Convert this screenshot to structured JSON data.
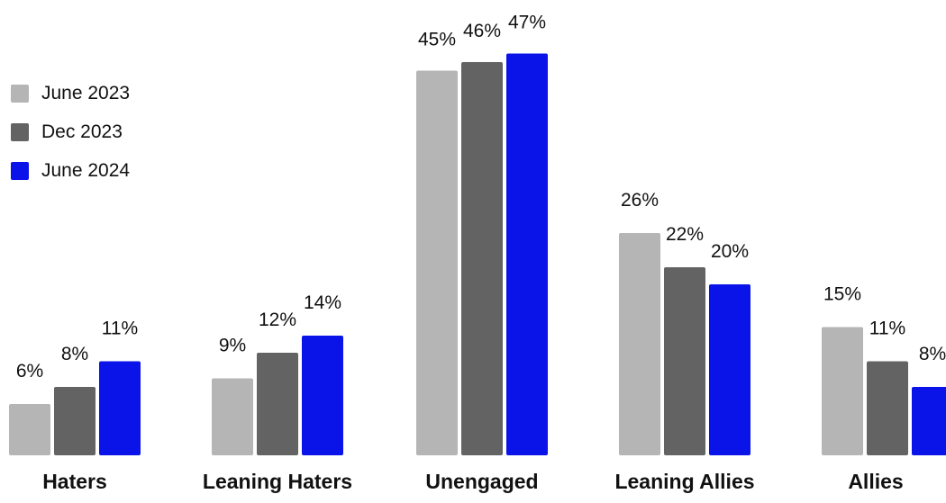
{
  "chart_data": {
    "type": "bar",
    "categories": [
      "Haters",
      "Leaning Haters",
      "Unengaged",
      "Leaning Allies",
      "Allies"
    ],
    "series": [
      {
        "name": "June 2023",
        "color": "#b5b5b5",
        "values": [
          6,
          9,
          45,
          26,
          15
        ],
        "labels": [
          "6%",
          "9%",
          "45%",
          "26%",
          "15%"
        ]
      },
      {
        "name": "Dec 2023",
        "color": "#636363",
        "values": [
          8,
          12,
          46,
          22,
          11
        ],
        "labels": [
          "8%",
          "12%",
          "46%",
          "22%",
          "11%"
        ]
      },
      {
        "name": "June 2024",
        "color": "#0a14e8",
        "values": [
          11,
          14,
          47,
          20,
          8
        ],
        "labels": [
          "11%",
          "14%",
          "47%",
          "20%",
          "8%"
        ]
      }
    ],
    "ylim": [
      0,
      50
    ],
    "legend_position": "top-left",
    "grid": false
  }
}
